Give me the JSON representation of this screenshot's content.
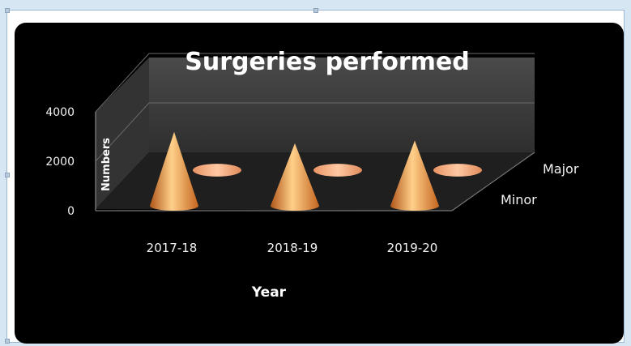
{
  "chart_data": {
    "type": "bar",
    "subtype": "3d-cone",
    "title": "Surgeries performed",
    "xlabel": "Year",
    "ylabel": "Numbers",
    "categories": [
      "2017-18",
      "2018-19",
      "2019-20"
    ],
    "series": [
      {
        "name": "Minor",
        "values": [
          2600,
          2200,
          2300
        ]
      },
      {
        "name": "Major",
        "values": [
          150,
          150,
          180
        ]
      }
    ],
    "ylim": [
      0,
      4000
    ],
    "yticks": [
      0,
      2000,
      4000
    ],
    "grid": true,
    "colors": {
      "background": "#000000",
      "wall": "#3a3a3a",
      "cone": "#e8892d",
      "cone_light": "#ffd08a",
      "cone_dark": "#b0561a",
      "major_disc": "#f2a878"
    }
  }
}
